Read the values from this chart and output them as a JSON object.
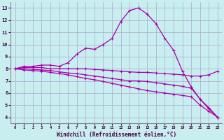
{
  "xlabel": "Windchill (Refroidissement éolien,°C)",
  "bg_color": "#c8eef0",
  "grid_color": "#aaaacc",
  "line_color": "#aa00aa",
  "x": [
    0,
    1,
    2,
    3,
    4,
    5,
    6,
    7,
    8,
    9,
    10,
    11,
    12,
    13,
    14,
    15,
    16,
    17,
    18,
    19,
    20,
    21,
    22,
    23
  ],
  "line1": [
    8.0,
    8.2,
    8.2,
    8.3,
    8.3,
    8.2,
    8.5,
    9.2,
    9.7,
    9.6,
    10.0,
    10.5,
    11.9,
    12.8,
    13.0,
    12.5,
    11.7,
    10.5,
    9.5,
    7.8,
    6.5,
    5.5,
    4.7,
    4.0
  ],
  "line2": [
    8.0,
    8.1,
    8.1,
    8.1,
    8.0,
    8.0,
    8.0,
    8.0,
    8.0,
    7.95,
    7.9,
    7.85,
    7.8,
    7.75,
    7.7,
    7.7,
    7.65,
    7.6,
    7.55,
    7.5,
    7.4,
    7.4,
    7.5,
    7.8
  ],
  "line3": [
    8.0,
    8.0,
    7.95,
    7.9,
    7.85,
    7.75,
    7.65,
    7.6,
    7.5,
    7.4,
    7.3,
    7.2,
    7.1,
    7.0,
    7.0,
    6.95,
    6.85,
    6.75,
    6.65,
    6.55,
    6.4,
    5.5,
    4.8,
    4.0
  ],
  "line4": [
    8.0,
    7.9,
    7.85,
    7.8,
    7.7,
    7.6,
    7.5,
    7.35,
    7.2,
    7.1,
    6.95,
    6.8,
    6.65,
    6.5,
    6.35,
    6.2,
    6.1,
    6.0,
    5.9,
    5.8,
    5.7,
    5.0,
    4.5,
    4.0
  ],
  "ylim": [
    3.5,
    13.5
  ],
  "yticks": [
    4,
    5,
    6,
    7,
    8,
    9,
    10,
    11,
    12,
    13
  ],
  "xticks": [
    0,
    1,
    2,
    3,
    4,
    5,
    6,
    7,
    8,
    9,
    10,
    11,
    12,
    13,
    14,
    15,
    16,
    17,
    18,
    19,
    20,
    21,
    22,
    23
  ]
}
